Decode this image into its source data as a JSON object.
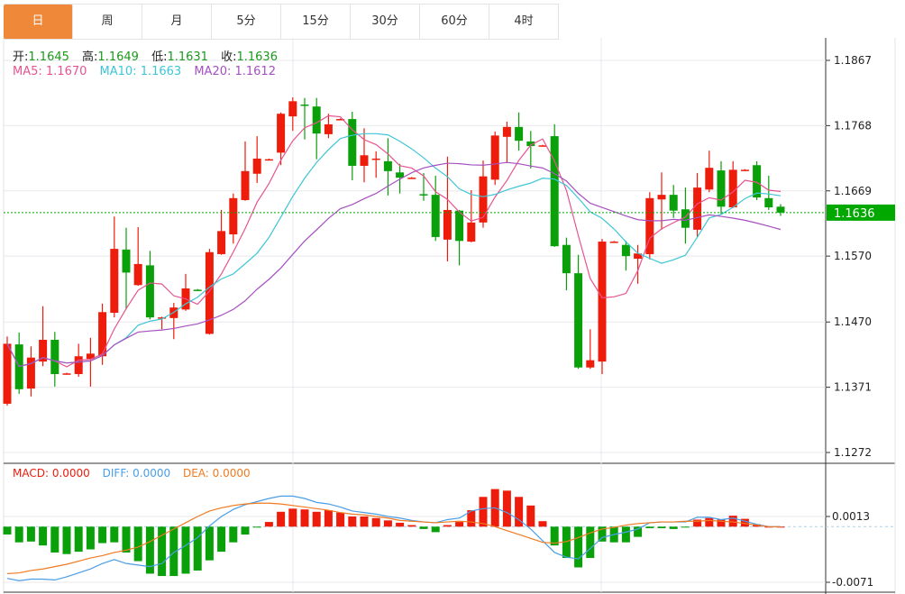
{
  "tabs": [
    {
      "label": "日",
      "active": true
    },
    {
      "label": "周"
    },
    {
      "label": "月"
    },
    {
      "label": "5分"
    },
    {
      "label": "15分"
    },
    {
      "label": "30分"
    },
    {
      "label": "60分"
    },
    {
      "label": "4时"
    }
  ],
  "ohlc_legend": {
    "open_label": "开:",
    "open": "1.1645",
    "high_label": "高:",
    "high": "1.1649",
    "low_label": "低:",
    "low": "1.1631",
    "close_label": "收:",
    "close": "1.1636"
  },
  "ma_legend": {
    "ma5": "MA5: 1.1670",
    "ma10": "MA10: 1.1663",
    "ma20": "MA20: 1.1612"
  },
  "macd_legend": {
    "macd": "MACD: 0.0000",
    "diff": "DIFF: 0.0000",
    "dea": "DEA: 0.0000"
  },
  "current_price": "1.1636",
  "colors": {
    "up": "#ee1c0b",
    "down": "#0aa00a",
    "ma5": "#e8538f",
    "ma10": "#3ec6d6",
    "ma20": "#a650c0",
    "diff": "#4a9ee8",
    "dea": "#f07a20",
    "active_tab": "#f0883a",
    "price_tag": "#00a800"
  },
  "chart_data": [
    {
      "type": "candlestick",
      "ylim": [
        1.1272,
        1.1867
      ],
      "yticks": [
        "1.1867",
        "1.1768",
        "1.1669",
        "1.1570",
        "1.1470",
        "1.1371",
        "1.1272"
      ],
      "grid": true,
      "moving_averages": [
        5,
        10,
        20
      ],
      "columns": [
        "open",
        "high",
        "low",
        "close"
      ],
      "candles": [
        [
          1.1346,
          1.1448,
          1.1343,
          1.1437
        ],
        [
          1.1436,
          1.1454,
          1.1361,
          1.1368
        ],
        [
          1.1369,
          1.1433,
          1.1357,
          1.1416
        ],
        [
          1.141,
          1.1494,
          1.1403,
          1.1443
        ],
        [
          1.1443,
          1.1455,
          1.1372,
          1.1391
        ],
        [
          1.1391,
          1.1393,
          1.139,
          1.1392
        ],
        [
          1.1391,
          1.1437,
          1.1387,
          1.1418
        ],
        [
          1.1414,
          1.1446,
          1.1372,
          1.1422
        ],
        [
          1.1418,
          1.1498,
          1.1405,
          1.1485
        ],
        [
          1.1484,
          1.163,
          1.1477,
          1.1581
        ],
        [
          1.158,
          1.1613,
          1.1489,
          1.1545
        ],
        [
          1.1526,
          1.1614,
          1.1525,
          1.1558
        ],
        [
          1.1556,
          1.1578,
          1.1474,
          1.1477
        ],
        [
          1.1476,
          1.1478,
          1.1459,
          1.1477
        ],
        [
          1.1476,
          1.1499,
          1.1444,
          1.1492
        ],
        [
          1.1489,
          1.1543,
          1.1487,
          1.1521
        ],
        [
          1.1519,
          1.152,
          1.1517,
          1.1518
        ],
        [
          1.1452,
          1.1581,
          1.1451,
          1.1576
        ],
        [
          1.1573,
          1.164,
          1.1572,
          1.1608
        ],
        [
          1.1603,
          1.1665,
          1.1589,
          1.1658
        ],
        [
          1.1655,
          1.1744,
          1.1654,
          1.1699
        ],
        [
          1.1695,
          1.1752,
          1.1681,
          1.1718
        ],
        [
          1.1716,
          1.1718,
          1.1716,
          1.1717
        ],
        [
          1.1727,
          1.1788,
          1.1708,
          1.1786
        ],
        [
          1.1782,
          1.1811,
          1.176,
          1.1805
        ],
        [
          1.18,
          1.181,
          1.1747,
          1.1798
        ],
        [
          1.1797,
          1.181,
          1.1717,
          1.1756
        ],
        [
          1.1755,
          1.1786,
          1.1749,
          1.177
        ],
        [
          1.1777,
          1.1779,
          1.1777,
          1.1778
        ],
        [
          1.1778,
          1.1789,
          1.1685,
          1.1707
        ],
        [
          1.1707,
          1.1764,
          1.1682,
          1.1723
        ],
        [
          1.1717,
          1.1729,
          1.1689,
          1.1718
        ],
        [
          1.1714,
          1.1749,
          1.1662,
          1.1699
        ],
        [
          1.1697,
          1.171,
          1.1665,
          1.1689
        ],
        [
          1.1688,
          1.169,
          1.1688,
          1.1689
        ],
        [
          1.1664,
          1.1696,
          1.1654,
          1.1663
        ],
        [
          1.1663,
          1.1692,
          1.1593,
          1.1599
        ],
        [
          1.1595,
          1.1721,
          1.1562,
          1.164
        ],
        [
          1.1639,
          1.164,
          1.1556,
          1.1593
        ],
        [
          1.1592,
          1.167,
          1.1591,
          1.1621
        ],
        [
          1.1621,
          1.1715,
          1.1613,
          1.1691
        ],
        [
          1.1686,
          1.1759,
          1.1678,
          1.1753
        ],
        [
          1.1751,
          1.1774,
          1.1711,
          1.1766
        ],
        [
          1.1766,
          1.1788,
          1.173,
          1.1745
        ],
        [
          1.1744,
          1.176,
          1.1703,
          1.1737
        ],
        [
          1.1737,
          1.1739,
          1.1737,
          1.1738
        ],
        [
          1.1752,
          1.177,
          1.1584,
          1.1585
        ],
        [
          1.1587,
          1.1598,
          1.1518,
          1.1544
        ],
        [
          1.1544,
          1.1572,
          1.1399,
          1.1401
        ],
        [
          1.1401,
          1.1459,
          1.1399,
          1.1412
        ],
        [
          1.141,
          1.1596,
          1.1391,
          1.1592
        ],
        [
          1.1591,
          1.1593,
          1.1591,
          1.1592
        ],
        [
          1.1587,
          1.1593,
          1.1548,
          1.157
        ],
        [
          1.1566,
          1.1587,
          1.1528,
          1.1574
        ],
        [
          1.1573,
          1.1667,
          1.1565,
          1.1658
        ],
        [
          1.1656,
          1.1697,
          1.161,
          1.1663
        ],
        [
          1.1663,
          1.1678,
          1.1628,
          1.1639
        ],
        [
          1.1641,
          1.1674,
          1.1589,
          1.1613
        ],
        [
          1.161,
          1.1696,
          1.1599,
          1.1674
        ],
        [
          1.1671,
          1.173,
          1.1667,
          1.1704
        ],
        [
          1.17,
          1.1714,
          1.1634,
          1.1645
        ],
        [
          1.1644,
          1.1714,
          1.1643,
          1.1701
        ],
        [
          1.17,
          1.1702,
          1.17,
          1.1701
        ],
        [
          1.1708,
          1.1714,
          1.1655,
          1.1659
        ],
        [
          1.1658,
          1.1692,
          1.164,
          1.1644
        ],
        [
          1.1645,
          1.1649,
          1.1631,
          1.1636
        ]
      ]
    },
    {
      "type": "bar+line",
      "ylim": [
        -0.0071,
        0.0013
      ],
      "yticks": [
        "0.0013",
        "-0.0071"
      ],
      "macd": [
        -0.001,
        -0.002,
        -0.0019,
        -0.0024,
        -0.0033,
        -0.0035,
        -0.0032,
        -0.0029,
        -0.0021,
        -0.002,
        -0.0033,
        -0.0044,
        -0.006,
        -0.0063,
        -0.0063,
        -0.006,
        -0.0056,
        -0.0043,
        -0.0032,
        -0.002,
        -0.001,
        -0.0001,
        0.0006,
        0.0019,
        0.0023,
        0.0022,
        0.0019,
        0.0021,
        0.0018,
        0.0013,
        0.0013,
        0.0011,
        0.0008,
        0.0005,
        0.0002,
        -0.0003,
        -0.0007,
        0.0002,
        0.0006,
        0.0021,
        0.0038,
        0.0048,
        0.0046,
        0.0038,
        0.0027,
        0.0007,
        -0.0024,
        -0.004,
        -0.0052,
        -0.004,
        -0.0019,
        -0.002,
        -0.002,
        -0.0013,
        -0.0002,
        -0.0002,
        -0.0003,
        -0.0001,
        0.0009,
        0.0011,
        0.0009,
        0.0014,
        0.001,
        0.0003,
        0.0,
        0.0
      ],
      "diff": [
        -0.0066,
        -0.0069,
        -0.0067,
        -0.0067,
        -0.0068,
        -0.0064,
        -0.0059,
        -0.0054,
        -0.0047,
        -0.0042,
        -0.0047,
        -0.0049,
        -0.0051,
        -0.0047,
        -0.0033,
        -0.0024,
        -0.0014,
        0.0001,
        0.0013,
        0.0022,
        0.0028,
        0.0032,
        0.0036,
        0.0039,
        0.0039,
        0.0036,
        0.0031,
        0.0029,
        0.0025,
        0.002,
        0.0018,
        0.0016,
        0.0013,
        0.0011,
        0.0008,
        0.0006,
        0.0005,
        0.0009,
        0.0011,
        0.002,
        0.0023,
        0.0024,
        0.0018,
        0.0009,
        -0.0003,
        -0.0018,
        -0.0033,
        -0.0039,
        -0.0041,
        -0.0028,
        -0.0014,
        -0.001,
        -0.0007,
        -0.0003,
        0.0005,
        0.0006,
        0.0006,
        0.0006,
        0.0012,
        0.0012,
        0.0009,
        0.0011,
        0.0007,
        0.0003,
        0.0,
        0.0
      ],
      "dea": [
        -0.006,
        -0.0059,
        -0.0056,
        -0.0054,
        -0.0051,
        -0.0048,
        -0.0044,
        -0.004,
        -0.0037,
        -0.0033,
        -0.003,
        -0.0026,
        -0.0019,
        -0.0011,
        -0.0003,
        0.0005,
        0.0013,
        0.002,
        0.0024,
        0.0027,
        0.0029,
        0.003,
        0.003,
        0.0029,
        0.0027,
        0.0025,
        0.0023,
        0.0021,
        0.0018,
        0.0016,
        0.0015,
        0.0013,
        0.0011,
        0.0008,
        0.0007,
        0.0006,
        0.0005,
        0.0006,
        0.0007,
        0.0006,
        0.0004,
        0.0,
        -0.0005,
        -0.001,
        -0.0015,
        -0.002,
        -0.0021,
        -0.0019,
        -0.0014,
        -0.0008,
        -0.0003,
        -0.0001,
        0.0002,
        0.0004,
        0.0005,
        0.0006,
        0.0006,
        0.0007,
        0.0007,
        0.0008,
        0.0007,
        0.0006,
        0.0004,
        0.0002,
        0.0,
        0.0
      ]
    }
  ]
}
